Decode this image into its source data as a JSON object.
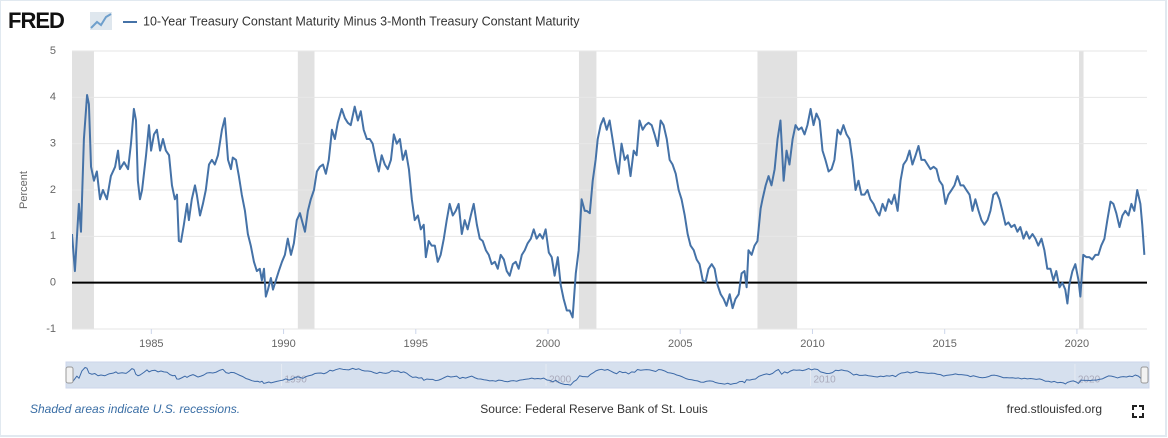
{
  "logo": "FRED",
  "footer": {
    "note": "Shaded areas indicate U.S. recessions.",
    "source": "Source: Federal Reserve Bank of St. Louis",
    "site": "fred.stlouisfed.org"
  },
  "chart_data": {
    "type": "line",
    "y_label": "Percent",
    "xlim": [
      1982,
      2022.65
    ],
    "xticks": [
      1985,
      1990,
      1995,
      2000,
      2005,
      2010,
      2015,
      2020
    ],
    "ylim": [
      -1,
      5
    ],
    "yticks": [
      -1,
      0,
      1,
      2,
      3,
      4,
      5
    ],
    "grid": true,
    "recessions": [
      [
        1981.5,
        1982.83
      ],
      [
        1990.54,
        1991.17
      ],
      [
        2001.17,
        2001.83
      ],
      [
        2007.92,
        2009.42
      ],
      [
        2020.08,
        2020.25
      ]
    ],
    "recession_color": "#e1e1e1",
    "navigator_xticks": [
      1990,
      2000,
      2010,
      2020
    ],
    "x": [
      1982.0,
      1982.11,
      1982.26,
      1982.34,
      1982.45,
      1982.57,
      1982.64,
      1982.72,
      1982.83,
      1982.94,
      1983.06,
      1983.17,
      1983.32,
      1983.47,
      1983.63,
      1983.74,
      1983.81,
      1983.97,
      1984.12,
      1984.23,
      1984.34,
      1984.42,
      1984.49,
      1984.57,
      1984.65,
      1984.8,
      1984.91,
      1984.99,
      1985.1,
      1985.21,
      1985.33,
      1985.44,
      1985.55,
      1985.67,
      1985.78,
      1985.89,
      1985.97,
      1986.04,
      1986.12,
      1986.23,
      1986.35,
      1986.42,
      1986.53,
      1986.65,
      1986.72,
      1986.84,
      1986.95,
      1987.06,
      1987.18,
      1987.29,
      1987.4,
      1987.52,
      1987.67,
      1987.78,
      1987.9,
      1988.01,
      1988.08,
      1988.2,
      1988.31,
      1988.42,
      1988.54,
      1988.65,
      1988.76,
      1988.88,
      1988.99,
      1989.1,
      1989.18,
      1989.26,
      1989.33,
      1989.41,
      1989.52,
      1989.6,
      1989.71,
      1989.82,
      1989.94,
      1990.05,
      1990.16,
      1990.28,
      1990.39,
      1990.5,
      1990.62,
      1990.69,
      1990.81,
      1990.92,
      1991.03,
      1991.15,
      1991.26,
      1991.37,
      1991.49,
      1991.6,
      1991.71,
      1991.83,
      1991.94,
      1992.05,
      1992.2,
      1992.32,
      1992.43,
      1992.54,
      1992.69,
      1992.81,
      1992.92,
      1993.03,
      1993.15,
      1993.26,
      1993.37,
      1993.49,
      1993.6,
      1993.71,
      1993.83,
      1993.94,
      1994.06,
      1994.17,
      1994.28,
      1994.4,
      1994.51,
      1994.62,
      1994.74,
      1994.85,
      1994.96,
      1995.08,
      1995.19,
      1995.3,
      1995.38,
      1995.49,
      1995.6,
      1995.72,
      1995.83,
      1995.94,
      1996.06,
      1996.17,
      1996.28,
      1996.4,
      1996.51,
      1996.62,
      1996.74,
      1996.85,
      1996.96,
      1997.08,
      1997.19,
      1997.31,
      1997.42,
      1997.53,
      1997.65,
      1997.76,
      1997.87,
      1997.99,
      1998.1,
      1998.21,
      1998.33,
      1998.44,
      1998.55,
      1998.67,
      1998.78,
      1998.89,
      1999.01,
      1999.12,
      1999.23,
      1999.35,
      1999.46,
      1999.57,
      1999.69,
      1999.8,
      1999.91,
      2000.03,
      2000.14,
      2000.25,
      2000.37,
      2000.48,
      2000.59,
      2000.71,
      2000.82,
      2000.93,
      2001.05,
      2001.16,
      2001.27,
      2001.39,
      2001.46,
      2001.58,
      2001.69,
      2001.8,
      2001.88,
      2001.99,
      2002.1,
      2002.22,
      2002.33,
      2002.44,
      2002.56,
      2002.67,
      2002.78,
      2002.9,
      2003.01,
      2003.12,
      2003.24,
      2003.35,
      2003.46,
      2003.58,
      2003.69,
      2003.8,
      2003.92,
      2004.03,
      2004.15,
      2004.26,
      2004.37,
      2004.49,
      2004.6,
      2004.71,
      2004.83,
      2004.94,
      2005.05,
      2005.17,
      2005.28,
      2005.39,
      2005.51,
      2005.62,
      2005.73,
      2005.85,
      2005.96,
      2006.07,
      2006.19,
      2006.3,
      2006.41,
      2006.53,
      2006.64,
      2006.75,
      2006.87,
      2006.98,
      2007.09,
      2007.21,
      2007.32,
      2007.43,
      2007.51,
      2007.58,
      2007.7,
      2007.81,
      2007.92,
      2008.04,
      2008.11,
      2008.23,
      2008.34,
      2008.45,
      2008.57,
      2008.68,
      2008.79,
      2008.91,
      2009.02,
      2009.13,
      2009.25,
      2009.36,
      2009.47,
      2009.59,
      2009.7,
      2009.81,
      2009.93,
      2010.04,
      2010.15,
      2010.27,
      2010.38,
      2010.49,
      2010.61,
      2010.72,
      2010.83,
      2010.95,
      2011.06,
      2011.17,
      2011.29,
      2011.4,
      2011.51,
      2011.63,
      2011.74,
      2011.85,
      2011.97,
      2012.08,
      2012.19,
      2012.31,
      2012.42,
      2012.53,
      2012.65,
      2012.76,
      2012.88,
      2012.99,
      2013.1,
      2013.22,
      2013.33,
      2013.44,
      2013.56,
      2013.67,
      2013.78,
      2013.9,
      2014.01,
      2014.12,
      2014.24,
      2014.35,
      2014.46,
      2014.58,
      2014.69,
      2014.8,
      2014.92,
      2015.03,
      2015.14,
      2015.26,
      2015.37,
      2015.48,
      2015.6,
      2015.71,
      2015.82,
      2015.94,
      2016.05,
      2016.16,
      2016.28,
      2016.39,
      2016.5,
      2016.62,
      2016.73,
      2016.84,
      2016.96,
      2017.07,
      2017.18,
      2017.3,
      2017.41,
      2017.52,
      2017.64,
      2017.75,
      2017.86,
      2017.98,
      2018.09,
      2018.2,
      2018.32,
      2018.43,
      2018.54,
      2018.66,
      2018.77,
      2018.88,
      2019.0,
      2019.11,
      2019.22,
      2019.34,
      2019.45,
      2019.56,
      2019.64,
      2019.71,
      2019.83,
      2019.94,
      2020.06,
      2020.13,
      2020.24,
      2020.36,
      2020.47,
      2020.58,
      2020.7,
      2020.81,
      2020.92,
      2021.04,
      2021.15,
      2021.27,
      2021.38,
      2021.49,
      2021.61,
      2021.72,
      2021.83,
      2021.95,
      2022.06,
      2022.17,
      2022.28,
      2022.4,
      2022.47,
      2022.55
    ],
    "series": [
      {
        "name": "10-Year Treasury Constant Maturity Minus 3-Month Treasury Constant Maturity",
        "color": "#4572a7",
        "values": [
          1.05,
          0.25,
          1.7,
          1.1,
          3.1,
          4.05,
          3.85,
          2.5,
          2.2,
          2.4,
          1.8,
          2.0,
          1.8,
          2.3,
          2.5,
          2.85,
          2.45,
          2.6,
          2.45,
          3.0,
          3.75,
          3.5,
          2.2,
          1.8,
          2.0,
          2.75,
          3.4,
          2.85,
          3.2,
          3.3,
          2.85,
          3.1,
          2.85,
          2.75,
          2.1,
          1.8,
          1.9,
          0.9,
          0.88,
          1.25,
          1.7,
          1.35,
          1.8,
          2.1,
          1.9,
          1.45,
          1.7,
          2.0,
          2.55,
          2.65,
          2.55,
          2.75,
          3.3,
          3.55,
          2.65,
          2.45,
          2.7,
          2.65,
          2.3,
          1.9,
          1.55,
          1.05,
          0.8,
          0.45,
          0.25,
          0.3,
          0.05,
          0.3,
          -0.3,
          -0.15,
          0.1,
          -0.15,
          0.05,
          0.25,
          0.45,
          0.6,
          0.95,
          0.6,
          0.85,
          1.35,
          1.5,
          1.35,
          1.1,
          1.55,
          1.8,
          2.0,
          2.4,
          2.5,
          2.55,
          2.35,
          2.65,
          3.3,
          3.1,
          3.45,
          3.75,
          3.55,
          3.45,
          3.4,
          3.8,
          3.5,
          3.7,
          3.3,
          3.1,
          3.1,
          3.0,
          2.65,
          2.4,
          2.75,
          2.55,
          2.45,
          2.65,
          3.2,
          3.0,
          3.1,
          2.65,
          2.85,
          2.45,
          1.8,
          1.35,
          1.45,
          1.15,
          1.25,
          0.55,
          0.9,
          0.8,
          0.8,
          0.45,
          0.6,
          0.95,
          1.35,
          1.7,
          1.45,
          1.55,
          1.7,
          1.05,
          1.35,
          1.15,
          1.45,
          1.7,
          1.25,
          0.95,
          0.9,
          0.7,
          0.6,
          0.4,
          0.45,
          0.3,
          0.6,
          0.5,
          0.25,
          0.15,
          0.4,
          0.45,
          0.3,
          0.6,
          0.7,
          0.85,
          0.95,
          1.15,
          0.95,
          1.05,
          0.95,
          1.15,
          0.65,
          0.55,
          0.15,
          0.55,
          -0.05,
          -0.35,
          -0.6,
          -0.6,
          -0.75,
          0.2,
          0.7,
          1.8,
          1.55,
          1.55,
          1.5,
          2.2,
          2.65,
          3.1,
          3.4,
          3.55,
          3.3,
          3.5,
          3.1,
          2.65,
          2.35,
          3.0,
          2.65,
          2.75,
          2.3,
          2.85,
          2.75,
          3.5,
          3.3,
          3.4,
          3.45,
          3.4,
          3.2,
          2.95,
          3.5,
          3.4,
          3.1,
          2.65,
          2.55,
          2.35,
          2.0,
          1.8,
          1.45,
          1.05,
          0.8,
          0.7,
          0.5,
          0.4,
          0.05,
          0.02,
          0.3,
          0.4,
          0.3,
          -0.05,
          -0.25,
          -0.35,
          -0.5,
          -0.25,
          -0.55,
          -0.35,
          -0.25,
          0.2,
          0.25,
          -0.1,
          0.7,
          0.6,
          0.8,
          0.9,
          1.6,
          1.8,
          2.1,
          2.3,
          2.1,
          2.45,
          3.1,
          3.5,
          2.2,
          2.85,
          2.55,
          3.1,
          3.4,
          3.3,
          3.35,
          3.2,
          3.4,
          3.75,
          3.4,
          3.65,
          3.5,
          2.85,
          2.65,
          2.4,
          2.45,
          2.65,
          3.3,
          3.2,
          3.4,
          3.2,
          3.1,
          2.65,
          2.0,
          2.2,
          1.9,
          1.9,
          2.0,
          1.8,
          1.7,
          1.55,
          1.45,
          1.7,
          1.55,
          1.8,
          1.7,
          1.9,
          1.55,
          2.2,
          2.55,
          2.65,
          2.85,
          2.55,
          2.75,
          2.95,
          2.65,
          2.65,
          2.55,
          2.45,
          2.5,
          2.45,
          2.2,
          2.1,
          1.7,
          1.9,
          2.0,
          2.1,
          2.3,
          2.1,
          2.1,
          2.0,
          1.9,
          1.55,
          1.8,
          1.55,
          1.35,
          1.25,
          1.35,
          1.55,
          1.9,
          1.95,
          1.8,
          1.55,
          1.25,
          1.3,
          1.2,
          1.25,
          1.1,
          1.2,
          0.95,
          1.1,
          0.95,
          1.05,
          0.95,
          0.8,
          0.95,
          0.7,
          0.3,
          0.3,
          0.05,
          0.25,
          -0.1,
          0.0,
          -0.15,
          -0.45,
          -0.05,
          0.25,
          0.4,
          0.05,
          -0.3,
          0.6,
          0.55,
          0.55,
          0.5,
          0.6,
          0.6,
          0.8,
          0.95,
          1.35,
          1.75,
          1.7,
          1.5,
          1.2,
          1.45,
          1.55,
          1.45,
          1.7,
          1.55,
          2.0,
          1.7,
          1.25,
          0.6
        ]
      }
    ]
  }
}
